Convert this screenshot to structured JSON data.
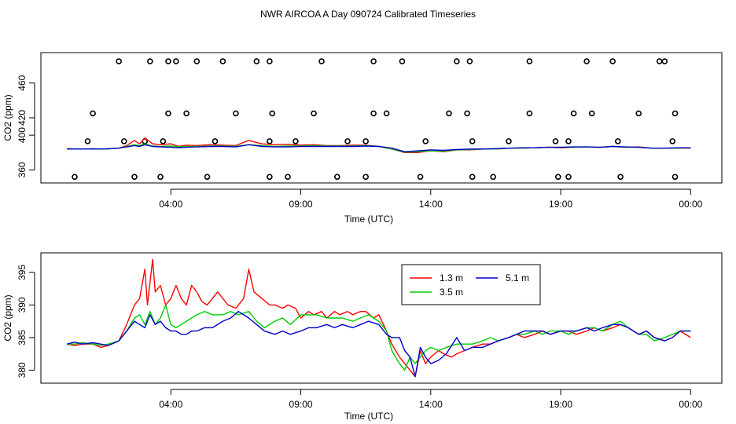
{
  "figure_title": "NWR AIRCOA A  Day 090724  Calibrated Timeseries",
  "chart_data": [
    {
      "type": "line",
      "id": "top",
      "title": "NWR AIRCOA A  Day 090724  Calibrated Timeseries",
      "xlabel": "Time (UTC)",
      "ylabel": "CO2 (ppm)",
      "xlim_hours": [
        -1.0,
        25.2
      ],
      "ylim": [
        345,
        495
      ],
      "x_ticks": [
        {
          "hour": 4,
          "label": "04:00"
        },
        {
          "hour": 9,
          "label": "09:00"
        },
        {
          "hour": 14,
          "label": "14:00"
        },
        {
          "hour": 19,
          "label": "19:00"
        },
        {
          "hour": 24,
          "label": "00:00"
        }
      ],
      "y_ticks": [
        {
          "value": 360,
          "label": "360"
        },
        {
          "value": 400,
          "label": "400"
        },
        {
          "value": 420,
          "label": "420"
        },
        {
          "value": 460,
          "label": "460"
        }
      ],
      "series": [
        {
          "name": "1.3 m",
          "color": "#ff0000",
          "x": [
            0,
            0.5,
            1,
            1.5,
            2,
            2.3,
            2.6,
            2.8,
            3,
            3.3,
            3.6,
            4,
            4.3,
            4.6,
            5,
            5.5,
            6,
            6.5,
            7,
            7.5,
            8,
            8.5,
            9,
            9.5,
            10,
            10.5,
            11,
            11.5,
            12,
            12.5,
            13,
            13.5,
            14,
            14.5,
            15,
            15.5,
            16,
            16.5,
            17,
            17.5,
            18,
            18.5,
            19,
            19.5,
            20,
            20.5,
            21,
            21.5,
            22,
            22.5,
            23,
            23.5,
            24
          ],
          "y": [
            384.5,
            384,
            384.3,
            384,
            385,
            388,
            394,
            390,
            397,
            390,
            389,
            390,
            387,
            388.5,
            388,
            389,
            388.5,
            388,
            394,
            390,
            389,
            389.5,
            388.5,
            389,
            388,
            388,
            388.5,
            388.5,
            387,
            384,
            380,
            380,
            382,
            381,
            383,
            383,
            384,
            384,
            385,
            385,
            385.5,
            386,
            385.5,
            386,
            386.5,
            386,
            387,
            386,
            386.5,
            385,
            385,
            385,
            385
          ]
        },
        {
          "name": "3.5 m",
          "color": "#00cc00",
          "x": [
            0,
            0.5,
            1,
            1.5,
            2,
            2.3,
            2.6,
            2.8,
            3,
            3.3,
            3.6,
            4,
            4.3,
            4.6,
            5,
            5.5,
            6,
            6.5,
            7,
            7.5,
            8,
            8.5,
            9,
            9.5,
            10,
            10.5,
            11,
            11.5,
            12,
            12.5,
            13,
            13.5,
            14,
            14.5,
            15,
            15.5,
            16,
            16.5,
            17,
            17.5,
            18,
            18.5,
            19,
            19.5,
            20,
            20.5,
            21,
            21.5,
            22,
            22.5,
            23,
            23.5,
            24
          ],
          "y": [
            384.2,
            384,
            384.1,
            384,
            385,
            387,
            389,
            388,
            390,
            387.5,
            387,
            387.5,
            386.5,
            387,
            387,
            387.5,
            387.5,
            387,
            389,
            388,
            387,
            387.5,
            387.5,
            388,
            387.5,
            387.5,
            387.5,
            388,
            387,
            384,
            380.5,
            381,
            382,
            381.5,
            383,
            383.5,
            384,
            384,
            385,
            385,
            385.5,
            386,
            386,
            386,
            386.5,
            386,
            387,
            386,
            386,
            385,
            385,
            385,
            385.5
          ]
        },
        {
          "name": "5.1 m",
          "color": "#0000cc",
          "x": [
            0,
            0.5,
            1,
            1.5,
            2,
            2.3,
            2.6,
            2.8,
            3,
            3.3,
            3.6,
            4,
            4.3,
            4.6,
            5,
            5.5,
            6,
            6.5,
            7,
            7.5,
            8,
            8.5,
            9,
            9.5,
            10,
            10.5,
            11,
            11.5,
            12,
            12.5,
            13,
            13.5,
            14,
            14.5,
            15,
            15.5,
            16,
            16.5,
            17,
            17.5,
            18,
            18.5,
            19,
            19.5,
            20,
            20.5,
            21,
            21.5,
            22,
            22.5,
            23,
            23.5,
            24
          ],
          "y": [
            384,
            384.1,
            384,
            384.2,
            385,
            386.5,
            388,
            387,
            389,
            387,
            386.5,
            386,
            385.5,
            386,
            386.5,
            387,
            387,
            386.5,
            389,
            387,
            386.5,
            386.5,
            387,
            387,
            387,
            387,
            387,
            387.5,
            387,
            385,
            381,
            382,
            383,
            382.5,
            383.5,
            384,
            384,
            384.5,
            385,
            385.5,
            385.5,
            386,
            386,
            386.5,
            386.5,
            386,
            387,
            386.5,
            386,
            385,
            385,
            385.5,
            385.5
          ]
        }
      ],
      "flagged_points": [
        {
          "label": "o",
          "x": [
            2.0,
            3.2,
            3.9,
            4.2,
            5.0,
            6.0,
            7.3,
            7.8,
            9.8,
            11.8,
            12.9,
            15.0,
            15.5,
            17.8,
            20.0,
            21.0,
            22.8,
            23.0
          ],
          "y": [
            485,
            485,
            485,
            485,
            485,
            485,
            485,
            485,
            485,
            485,
            485,
            485,
            485,
            485,
            485,
            485,
            485,
            485
          ]
        },
        {
          "label": "o",
          "x": [
            1.0,
            3.9,
            4.6,
            6.5,
            7.9,
            9.5,
            11.8,
            12.3,
            14.7,
            15.4,
            17.8,
            19.5,
            20.2,
            22.0,
            23.4
          ],
          "y": [
            425,
            425,
            425,
            425,
            425,
            425,
            425,
            425,
            425,
            425,
            425,
            425,
            425,
            425,
            425
          ]
        },
        {
          "label": "o",
          "x": [
            0.8,
            2.2,
            3.0,
            3.7,
            5.7,
            7.8,
            8.8,
            10.8,
            11.5,
            13.8,
            15.6,
            17.0,
            18.8,
            19.3,
            21.2,
            23.3
          ],
          "y": [
            393,
            393,
            393,
            393,
            393,
            393,
            393,
            393,
            393,
            393,
            393,
            393,
            393,
            393,
            393,
            393
          ]
        },
        {
          "label": "o",
          "x": [
            0.3,
            2.6,
            3.6,
            5.4,
            7.8,
            8.5,
            10.4,
            11.5,
            13.6,
            15.6,
            16.4,
            18.9,
            19.3,
            21.3,
            23.4
          ],
          "y": [
            352,
            352,
            352,
            352,
            352,
            352,
            352,
            352,
            352,
            352,
            352,
            352,
            352,
            352,
            352
          ]
        }
      ]
    },
    {
      "type": "line",
      "id": "bottom",
      "title": "",
      "xlabel": "Time (UTC)",
      "ylabel": "CO2 (ppm)",
      "xlim_hours": [
        -1.0,
        25.2
      ],
      "ylim": [
        378,
        398
      ],
      "x_ticks": [
        {
          "hour": 4,
          "label": "04:00"
        },
        {
          "hour": 9,
          "label": "09:00"
        },
        {
          "hour": 14,
          "label": "14:00"
        },
        {
          "hour": 19,
          "label": "19:00"
        },
        {
          "hour": 24,
          "label": "00:00"
        }
      ],
      "y_ticks": [
        {
          "value": 380,
          "label": "380"
        },
        {
          "value": 385,
          "label": "385"
        },
        {
          "value": 390,
          "label": "390"
        },
        {
          "value": 395,
          "label": "395"
        }
      ],
      "legend": {
        "position": "top-center",
        "entries": [
          "1.3 m",
          "3.5 m",
          "5.1 m"
        ]
      },
      "series": [
        {
          "name": "1.3 m",
          "color": "#ff0000",
          "x": [
            0,
            0.3,
            0.6,
            1,
            1.3,
            1.6,
            2,
            2.3,
            2.6,
            2.8,
            3,
            3.1,
            3.3,
            3.4,
            3.6,
            3.8,
            4,
            4.2,
            4.4,
            4.6,
            4.8,
            5,
            5.2,
            5.4,
            5.6,
            5.8,
            6,
            6.2,
            6.5,
            6.8,
            7.0,
            7.2,
            7.5,
            7.8,
            8,
            8.3,
            8.5,
            8.8,
            9,
            9.3,
            9.5,
            9.8,
            10,
            10.3,
            10.5,
            10.8,
            11,
            11.3,
            11.5,
            11.8,
            12,
            12.3,
            12.5,
            12.8,
            13,
            13.2,
            13.4,
            13.6,
            13.8,
            14,
            14.3,
            14.5,
            14.8,
            15,
            15.3,
            15.6,
            16,
            16.3,
            16.6,
            17,
            17.3,
            17.6,
            18,
            18.3,
            18.6,
            19,
            19.3,
            19.6,
            20,
            20.3,
            20.6,
            21,
            21.3,
            21.6,
            22,
            22.3,
            22.6,
            23,
            23.3,
            23.6,
            24
          ],
          "y": [
            384,
            383.8,
            384,
            384,
            383.5,
            383.8,
            384.5,
            387,
            390,
            391,
            395.5,
            390,
            397,
            392,
            393,
            390,
            391,
            393,
            391,
            390,
            393,
            392,
            390.5,
            390,
            391,
            392,
            391,
            390,
            389.5,
            391,
            395.5,
            392,
            391,
            390,
            390,
            389.5,
            390,
            389.5,
            388,
            389,
            388.5,
            389,
            388,
            389,
            388.5,
            389,
            388.5,
            389,
            389,
            388,
            388.5,
            386,
            384,
            382,
            381,
            380,
            379,
            383,
            381,
            382,
            383,
            382.5,
            382,
            382.5,
            383,
            383.5,
            384,
            384,
            384.5,
            385,
            385.5,
            385,
            385.5,
            386,
            385.5,
            386,
            386,
            385.5,
            386,
            386.5,
            386,
            386.5,
            387,
            386.5,
            385.5,
            386,
            385,
            384.5,
            385,
            386,
            385
          ]
        },
        {
          "name": "3.5 m",
          "color": "#00cc00",
          "x": [
            0,
            0.3,
            0.6,
            1,
            1.3,
            1.6,
            2,
            2.3,
            2.6,
            2.8,
            3,
            3.2,
            3.4,
            3.6,
            3.8,
            4,
            4.2,
            4.4,
            4.6,
            4.8,
            5,
            5.3,
            5.6,
            6,
            6.3,
            6.6,
            7,
            7.3,
            7.6,
            8,
            8.3,
            8.6,
            9,
            9.3,
            9.6,
            10,
            10.3,
            10.6,
            11,
            11.3,
            11.6,
            12,
            12.3,
            12.5,
            12.8,
            13,
            13.2,
            13.4,
            13.6,
            13.8,
            14,
            14.3,
            14.6,
            15,
            15.3,
            15.6,
            16,
            16.3,
            16.6,
            17,
            17.3,
            17.6,
            18,
            18.3,
            18.6,
            19,
            19.3,
            19.6,
            20,
            20.3,
            20.6,
            21,
            21.3,
            21.6,
            22,
            22.3,
            22.6,
            23,
            23.3,
            23.6,
            24
          ],
          "y": [
            384,
            384,
            384.2,
            384,
            383.8,
            384,
            384.5,
            386,
            388,
            388.5,
            387,
            389,
            387,
            388,
            390,
            387,
            386.5,
            387,
            387.5,
            388,
            388.5,
            389,
            388.5,
            388.5,
            389,
            388.5,
            389,
            387.5,
            386.5,
            387.5,
            388,
            387,
            388.5,
            388.5,
            388.5,
            388,
            388,
            388,
            387.5,
            388,
            388.5,
            387.5,
            386,
            383,
            381,
            380,
            382,
            381,
            382,
            383,
            383.5,
            383,
            383.5,
            384,
            384,
            384,
            384.5,
            385,
            384.5,
            385,
            385.5,
            385.5,
            386,
            385.5,
            386,
            386,
            385.5,
            386,
            386.5,
            386.5,
            386,
            387,
            387.5,
            386.5,
            385.5,
            385.5,
            384.5,
            385,
            385.5,
            386,
            386
          ]
        },
        {
          "name": "5.1 m",
          "color": "#0000cc",
          "x": [
            0,
            0.3,
            0.6,
            1,
            1.3,
            1.6,
            2,
            2.3,
            2.6,
            2.8,
            3,
            3.2,
            3.4,
            3.6,
            3.8,
            4,
            4.2,
            4.4,
            4.6,
            4.8,
            5,
            5.3,
            5.6,
            6,
            6.3,
            6.6,
            7,
            7.3,
            7.6,
            8,
            8.3,
            8.6,
            9,
            9.3,
            9.6,
            10,
            10.3,
            10.6,
            11,
            11.3,
            11.6,
            12,
            12.3,
            12.5,
            12.8,
            13,
            13.2,
            13.4,
            13.6,
            13.8,
            14,
            14.3,
            14.6,
            15,
            15.3,
            15.6,
            16,
            16.3,
            16.6,
            17,
            17.3,
            17.6,
            18,
            18.3,
            18.6,
            19,
            19.3,
            19.6,
            20,
            20.3,
            20.6,
            21,
            21.3,
            21.6,
            22,
            22.3,
            22.6,
            23,
            23.3,
            23.6,
            24
          ],
          "y": [
            384,
            384.3,
            384,
            384.2,
            384,
            383.8,
            384.5,
            386,
            387.5,
            387,
            386.5,
            388.5,
            387,
            387.5,
            386.5,
            386,
            386,
            385.5,
            385.5,
            386,
            386,
            386.5,
            386.5,
            387.5,
            388,
            389,
            388,
            387,
            386,
            385.5,
            386,
            385.5,
            386,
            386.5,
            386.5,
            387,
            386.5,
            387,
            386.5,
            387,
            387.5,
            387,
            385.5,
            385,
            385,
            383,
            382,
            379,
            383.5,
            382,
            381,
            381.5,
            382.5,
            385,
            383,
            383.5,
            383.5,
            384,
            384.5,
            385,
            385.5,
            386,
            386,
            386,
            385.5,
            386,
            386,
            386,
            386.5,
            386,
            386.5,
            387,
            387,
            386.5,
            385.5,
            386,
            385,
            384.5,
            385,
            386,
            386
          ]
        }
      ]
    }
  ]
}
